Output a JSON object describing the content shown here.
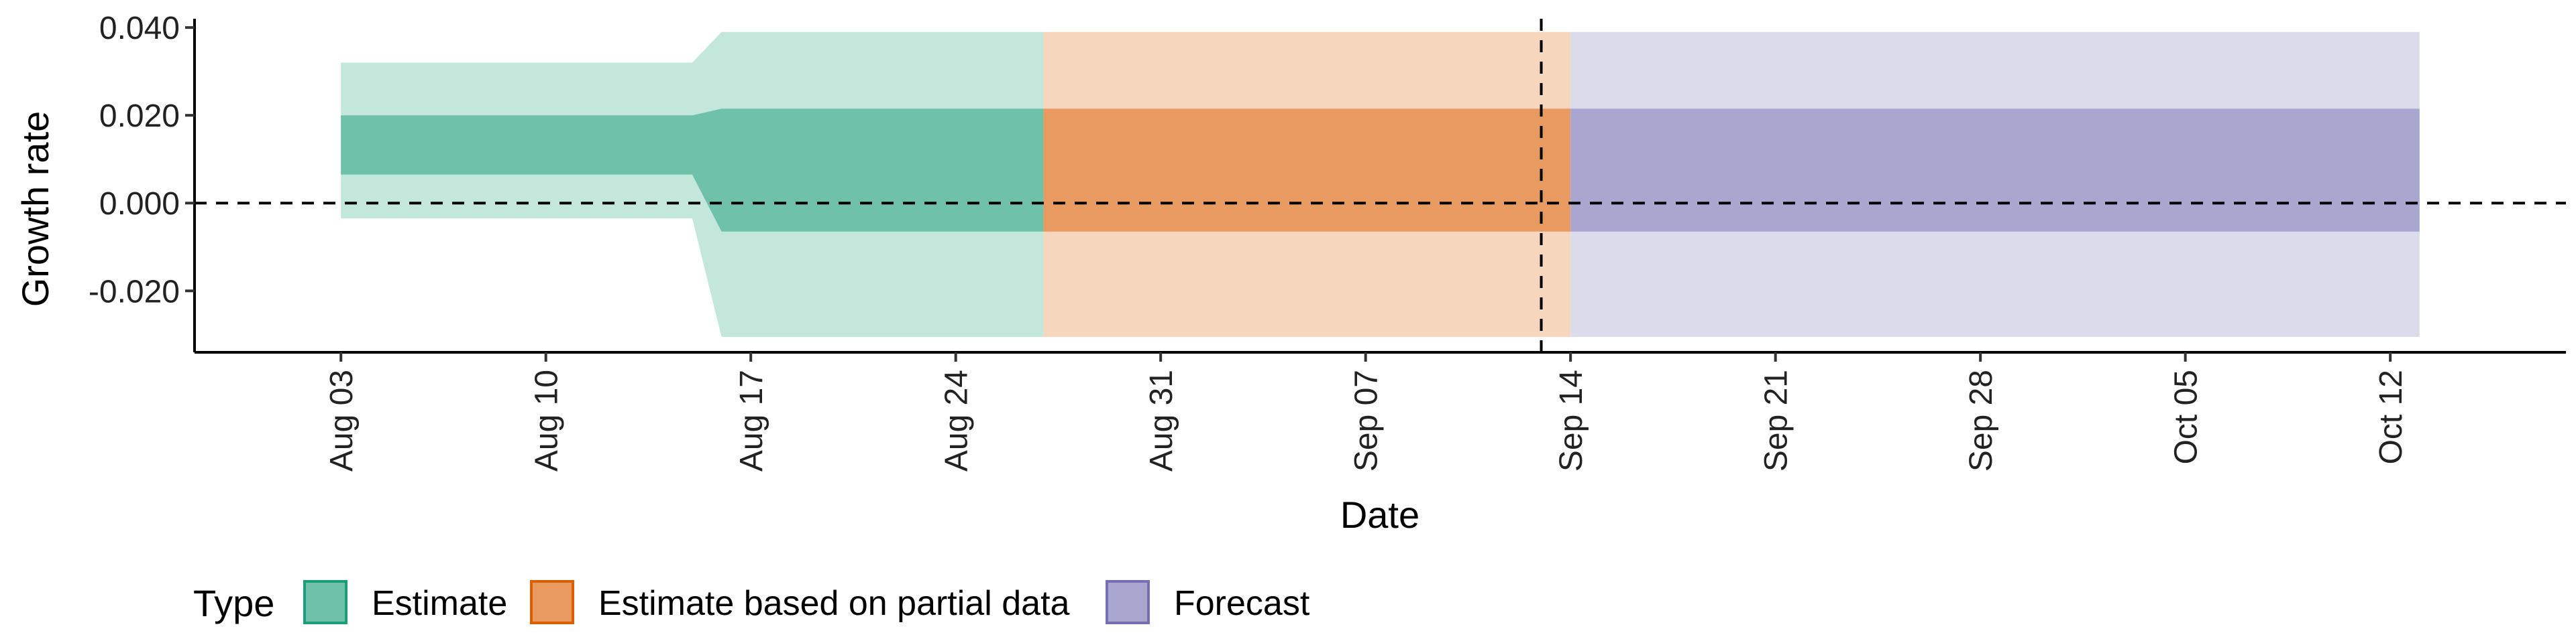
{
  "chart_data": {
    "type": "area",
    "xlabel": "Date",
    "ylabel": "Growth rate",
    "x_axis": {
      "type": "date",
      "range": [
        "2020-07-29",
        "2020-10-18"
      ],
      "ticks": [
        {
          "date": "2020-08-03",
          "label": "Aug 03"
        },
        {
          "date": "2020-08-10",
          "label": "Aug 10"
        },
        {
          "date": "2020-08-17",
          "label": "Aug 17"
        },
        {
          "date": "2020-08-24",
          "label": "Aug 24"
        },
        {
          "date": "2020-08-31",
          "label": "Aug 31"
        },
        {
          "date": "2020-09-07",
          "label": "Sep 07"
        },
        {
          "date": "2020-09-14",
          "label": "Sep 14"
        },
        {
          "date": "2020-09-21",
          "label": "Sep 21"
        },
        {
          "date": "2020-09-28",
          "label": "Sep 28"
        },
        {
          "date": "2020-10-05",
          "label": "Oct 05"
        },
        {
          "date": "2020-10-12",
          "label": "Oct 12"
        }
      ]
    },
    "y_axis": {
      "range": [
        -0.034,
        0.042
      ],
      "ticks": [
        {
          "value": 0.04,
          "label": "0.040"
        },
        {
          "value": 0.02,
          "label": "0.020"
        },
        {
          "value": 0.0,
          "label": "0.000"
        },
        {
          "value": -0.02,
          "label": "-0.020"
        }
      ]
    },
    "reference_lines": [
      {
        "axis": "y",
        "value": 0.0,
        "style": "dashed"
      },
      {
        "axis": "x",
        "value": "2020-09-13",
        "style": "dashed"
      }
    ],
    "legend": {
      "title": "Type",
      "position": "bottom-left",
      "items": [
        {
          "label": "Estimate",
          "fill": "#6fc2a9",
          "border": "#1b9e77"
        },
        {
          "label": "Estimate based on partial data",
          "fill": "#e89a60",
          "border": "#d95f02"
        },
        {
          "label": "Forecast",
          "fill": "#a9a6d0",
          "border": "#7570b3"
        }
      ]
    },
    "series": [
      {
        "name": "Estimate",
        "inner_color": "#6fc2a9",
        "outer_color": "#c4e7dc",
        "points": [
          {
            "date": "2020-08-03",
            "lower_outer": -0.0035,
            "lower_inner": 0.0065,
            "upper_inner": 0.02,
            "upper_outer": 0.032
          },
          {
            "date": "2020-08-15",
            "lower_outer": -0.0035,
            "lower_inner": 0.0065,
            "upper_inner": 0.02,
            "upper_outer": 0.032
          },
          {
            "date": "2020-08-16",
            "lower_outer": -0.0305,
            "lower_inner": -0.0065,
            "upper_inner": 0.0215,
            "upper_outer": 0.039
          },
          {
            "date": "2020-08-26",
            "lower_outer": -0.0305,
            "lower_inner": -0.0065,
            "upper_inner": 0.0215,
            "upper_outer": 0.039
          }
        ]
      },
      {
        "name": "Estimate based on partial data",
        "inner_color": "#e89a60",
        "outer_color": "#f6d6bd",
        "points": [
          {
            "date": "2020-08-27",
            "lower_outer": -0.0305,
            "lower_inner": -0.0065,
            "upper_inner": 0.0215,
            "upper_outer": 0.039
          },
          {
            "date": "2020-09-13",
            "lower_outer": -0.0305,
            "lower_inner": -0.0065,
            "upper_inner": 0.0215,
            "upper_outer": 0.039
          }
        ]
      },
      {
        "name": "Forecast",
        "inner_color": "#a9a6d0",
        "outer_color": "#dcdbec",
        "points": [
          {
            "date": "2020-09-14",
            "lower_outer": -0.0305,
            "lower_inner": -0.0065,
            "upper_inner": 0.0215,
            "upper_outer": 0.039
          },
          {
            "date": "2020-10-12",
            "lower_outer": -0.0305,
            "lower_inner": -0.0065,
            "upper_inner": 0.0215,
            "upper_outer": 0.039
          }
        ]
      }
    ]
  }
}
